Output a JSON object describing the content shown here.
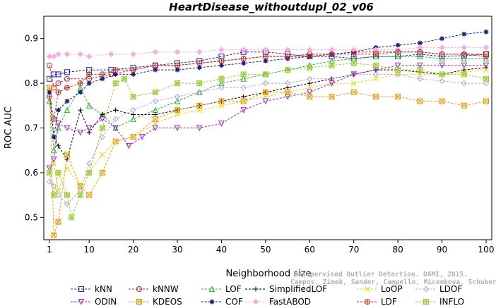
{
  "chart_data": {
    "type": "line",
    "title": "HeartDisease_withoutdupl_02_v06",
    "xlabel": "Neighborhood size",
    "ylabel": "ROC AUC",
    "xlim": [
      1,
      100
    ],
    "ylim": [
      0.45,
      0.95
    ],
    "xticks": [
      "1",
      "10",
      "20",
      "30",
      "40",
      "50",
      "60",
      "70",
      "80",
      "90",
      "100"
    ],
    "yticks": [
      "0.5",
      "0.6",
      "0.7",
      "0.8",
      "0.9"
    ],
    "legend_position": "bottom",
    "watermark": [
      "Unsupervised Outlier Detection. DAMI, 2015.",
      "Campos, Zimek, Sander, Campello, Micenkova, Schubert, Assent, Houle"
    ],
    "series": [
      {
        "name": "kNN",
        "color": "#1f1fcc",
        "marker": "square",
        "x": [
          1,
          2,
          3,
          5,
          10,
          15,
          20,
          25,
          30,
          35,
          40,
          45,
          50,
          55,
          60,
          65,
          70,
          75,
          80,
          85,
          90,
          95,
          100
        ],
        "y": [
          0.81,
          0.82,
          0.82,
          0.825,
          0.83,
          0.83,
          0.835,
          0.84,
          0.845,
          0.85,
          0.86,
          0.87,
          0.87,
          0.865,
          0.86,
          0.86,
          0.855,
          0.86,
          0.86,
          0.865,
          0.86,
          0.862,
          0.865
        ]
      },
      {
        "name": "kNNW",
        "color": "#cc2222",
        "marker": "circle",
        "x": [
          1,
          2,
          3,
          5,
          10,
          15,
          20,
          25,
          30,
          35,
          40,
          45,
          50,
          55,
          60,
          65,
          70,
          75,
          80,
          85,
          90,
          95,
          100
        ],
        "y": [
          0.84,
          0.79,
          0.8,
          0.81,
          0.81,
          0.82,
          0.83,
          0.84,
          0.84,
          0.845,
          0.85,
          0.855,
          0.86,
          0.86,
          0.865,
          0.865,
          0.87,
          0.87,
          0.87,
          0.87,
          0.865,
          0.865,
          0.865
        ]
      },
      {
        "name": "LOF",
        "color": "#22bb22",
        "marker": "triangle-up",
        "x": [
          1,
          2,
          3,
          5,
          8,
          10,
          13,
          16,
          20,
          25,
          30,
          35,
          40,
          45,
          50,
          55,
          60,
          65,
          70,
          75,
          80,
          85,
          90,
          95,
          100
        ],
        "y": [
          0.76,
          0.65,
          0.7,
          0.74,
          0.79,
          0.75,
          0.73,
          0.7,
          0.72,
          0.74,
          0.76,
          0.78,
          0.8,
          0.81,
          0.82,
          0.83,
          0.84,
          0.85,
          0.855,
          0.86,
          0.86,
          0.86,
          0.855,
          0.855,
          0.855
        ]
      },
      {
        "name": "SimplifiedLOF",
        "color": "#000000",
        "marker": "plus",
        "x": [
          1,
          2,
          3,
          5,
          8,
          10,
          13,
          16,
          20,
          25,
          30,
          35,
          40,
          45,
          50,
          55,
          60,
          65,
          70,
          75,
          80,
          85,
          90,
          95,
          100
        ],
        "y": [
          0.78,
          0.68,
          0.66,
          0.63,
          0.74,
          0.69,
          0.73,
          0.74,
          0.73,
          0.73,
          0.74,
          0.75,
          0.76,
          0.77,
          0.78,
          0.79,
          0.8,
          0.81,
          0.82,
          0.83,
          0.83,
          0.825,
          0.82,
          0.83,
          0.835
        ]
      },
      {
        "name": "LoOP",
        "color": "#dddd00",
        "marker": "x",
        "x": [
          1,
          2,
          3,
          5,
          8,
          10,
          13,
          16,
          20,
          25,
          30,
          35,
          40,
          45,
          50,
          55,
          60,
          65,
          70,
          75,
          80,
          85,
          90,
          95,
          100
        ],
        "y": [
          0.6,
          0.62,
          0.56,
          0.61,
          0.57,
          0.6,
          0.64,
          0.67,
          0.68,
          0.71,
          0.73,
          0.74,
          0.75,
          0.76,
          0.77,
          0.78,
          0.79,
          0.8,
          0.8,
          0.81,
          0.82,
          0.82,
          0.82,
          0.825,
          0.83
        ]
      },
      {
        "name": "LDOF",
        "color": "#aaaadd",
        "marker": "diamond",
        "x": [
          1,
          2,
          3,
          5,
          8,
          10,
          13,
          16,
          20,
          25,
          30,
          35,
          40,
          45,
          50,
          55,
          60,
          65,
          70,
          75,
          80,
          85,
          90,
          95,
          100
        ],
        "y": [
          0.58,
          0.57,
          0.55,
          0.53,
          0.56,
          0.62,
          0.68,
          0.72,
          0.74,
          0.76,
          0.77,
          0.78,
          0.79,
          0.79,
          0.8,
          0.8,
          0.81,
          0.81,
          0.82,
          0.82,
          0.82,
          0.81,
          0.805,
          0.8,
          0.8
        ]
      },
      {
        "name": "ODIN",
        "color": "#aa22cc",
        "marker": "triangle-down",
        "x": [
          1,
          2,
          3,
          5,
          8,
          10,
          13,
          16,
          19,
          22,
          25,
          30,
          35,
          40,
          45,
          50,
          55,
          60,
          65,
          70,
          75,
          80,
          85,
          90,
          95,
          100
        ],
        "y": [
          0.61,
          0.63,
          0.71,
          0.7,
          0.69,
          0.7,
          0.72,
          0.7,
          0.66,
          0.68,
          0.7,
          0.7,
          0.7,
          0.71,
          0.74,
          0.76,
          0.77,
          0.78,
          0.8,
          0.82,
          0.83,
          0.84,
          0.84,
          0.84,
          0.84,
          0.84
        ]
      },
      {
        "name": "KDEOS",
        "color": "#ee9900",
        "marker": "square-x",
        "x": [
          1,
          2,
          3,
          5,
          8,
          10,
          13,
          16,
          20,
          25,
          30,
          35,
          40,
          45,
          50,
          55,
          60,
          65,
          70,
          75,
          80,
          85,
          90,
          95,
          100
        ],
        "y": [
          0.79,
          0.46,
          0.49,
          0.64,
          0.57,
          0.55,
          0.6,
          0.67,
          0.68,
          0.72,
          0.74,
          0.75,
          0.76,
          0.76,
          0.78,
          0.78,
          0.77,
          0.77,
          0.78,
          0.77,
          0.77,
          0.76,
          0.76,
          0.75,
          0.76
        ]
      },
      {
        "name": "COF",
        "color": "#1a1a88",
        "marker": "asterisk",
        "x": [
          1,
          2,
          3,
          5,
          8,
          10,
          13,
          16,
          20,
          25,
          30,
          35,
          40,
          45,
          50,
          55,
          60,
          65,
          70,
          75,
          80,
          85,
          90,
          95,
          100
        ],
        "y": [
          0.78,
          0.68,
          0.74,
          0.76,
          0.78,
          0.8,
          0.81,
          0.82,
          0.82,
          0.83,
          0.83,
          0.835,
          0.84,
          0.845,
          0.85,
          0.855,
          0.86,
          0.865,
          0.87,
          0.88,
          0.885,
          0.89,
          0.9,
          0.91,
          0.915
        ]
      },
      {
        "name": "FastABOD",
        "color": "#ffaadd",
        "marker": "diamond-filled",
        "x": [
          1,
          2,
          3,
          5,
          8,
          10,
          15,
          20,
          25,
          30,
          35,
          40,
          45,
          50,
          55,
          60,
          65,
          70,
          75,
          80,
          85,
          90,
          95,
          100
        ],
        "y": [
          0.86,
          0.86,
          0.865,
          0.865,
          0.865,
          0.86,
          0.865,
          0.865,
          0.87,
          0.87,
          0.87,
          0.875,
          0.875,
          0.875,
          0.875,
          0.875,
          0.875,
          0.875,
          0.875,
          0.875,
          0.88,
          0.88,
          0.88,
          0.88
        ]
      },
      {
        "name": "LDF",
        "color": "#bb3322",
        "marker": "circle-plus",
        "x": [
          1,
          2,
          3,
          5,
          8,
          10,
          13,
          16,
          20,
          25,
          30,
          35,
          40,
          45,
          50,
          55,
          60,
          65,
          70,
          75,
          80,
          85,
          90,
          95,
          100
        ],
        "y": [
          0.77,
          0.72,
          0.78,
          0.79,
          0.8,
          0.82,
          0.82,
          0.83,
          0.83,
          0.84,
          0.84,
          0.845,
          0.85,
          0.855,
          0.86,
          0.86,
          0.86,
          0.865,
          0.865,
          0.865,
          0.87,
          0.87,
          0.865,
          0.865,
          0.86
        ]
      },
      {
        "name": "INFLO",
        "color": "#99cc33",
        "marker": "square-cross",
        "x": [
          1,
          2,
          3,
          5,
          6,
          8,
          10,
          13,
          16,
          18,
          20,
          25,
          30,
          35,
          40,
          45,
          50,
          55,
          60,
          65,
          70,
          75,
          80,
          85,
          90,
          95,
          100
        ],
        "y": [
          0.6,
          0.55,
          0.6,
          0.55,
          0.5,
          0.55,
          0.6,
          0.7,
          0.8,
          0.81,
          0.77,
          0.78,
          0.8,
          0.8,
          0.81,
          0.82,
          0.82,
          0.83,
          0.835,
          0.84,
          0.845,
          0.84,
          0.83,
          0.83,
          0.82,
          0.82,
          0.81
        ]
      }
    ]
  }
}
